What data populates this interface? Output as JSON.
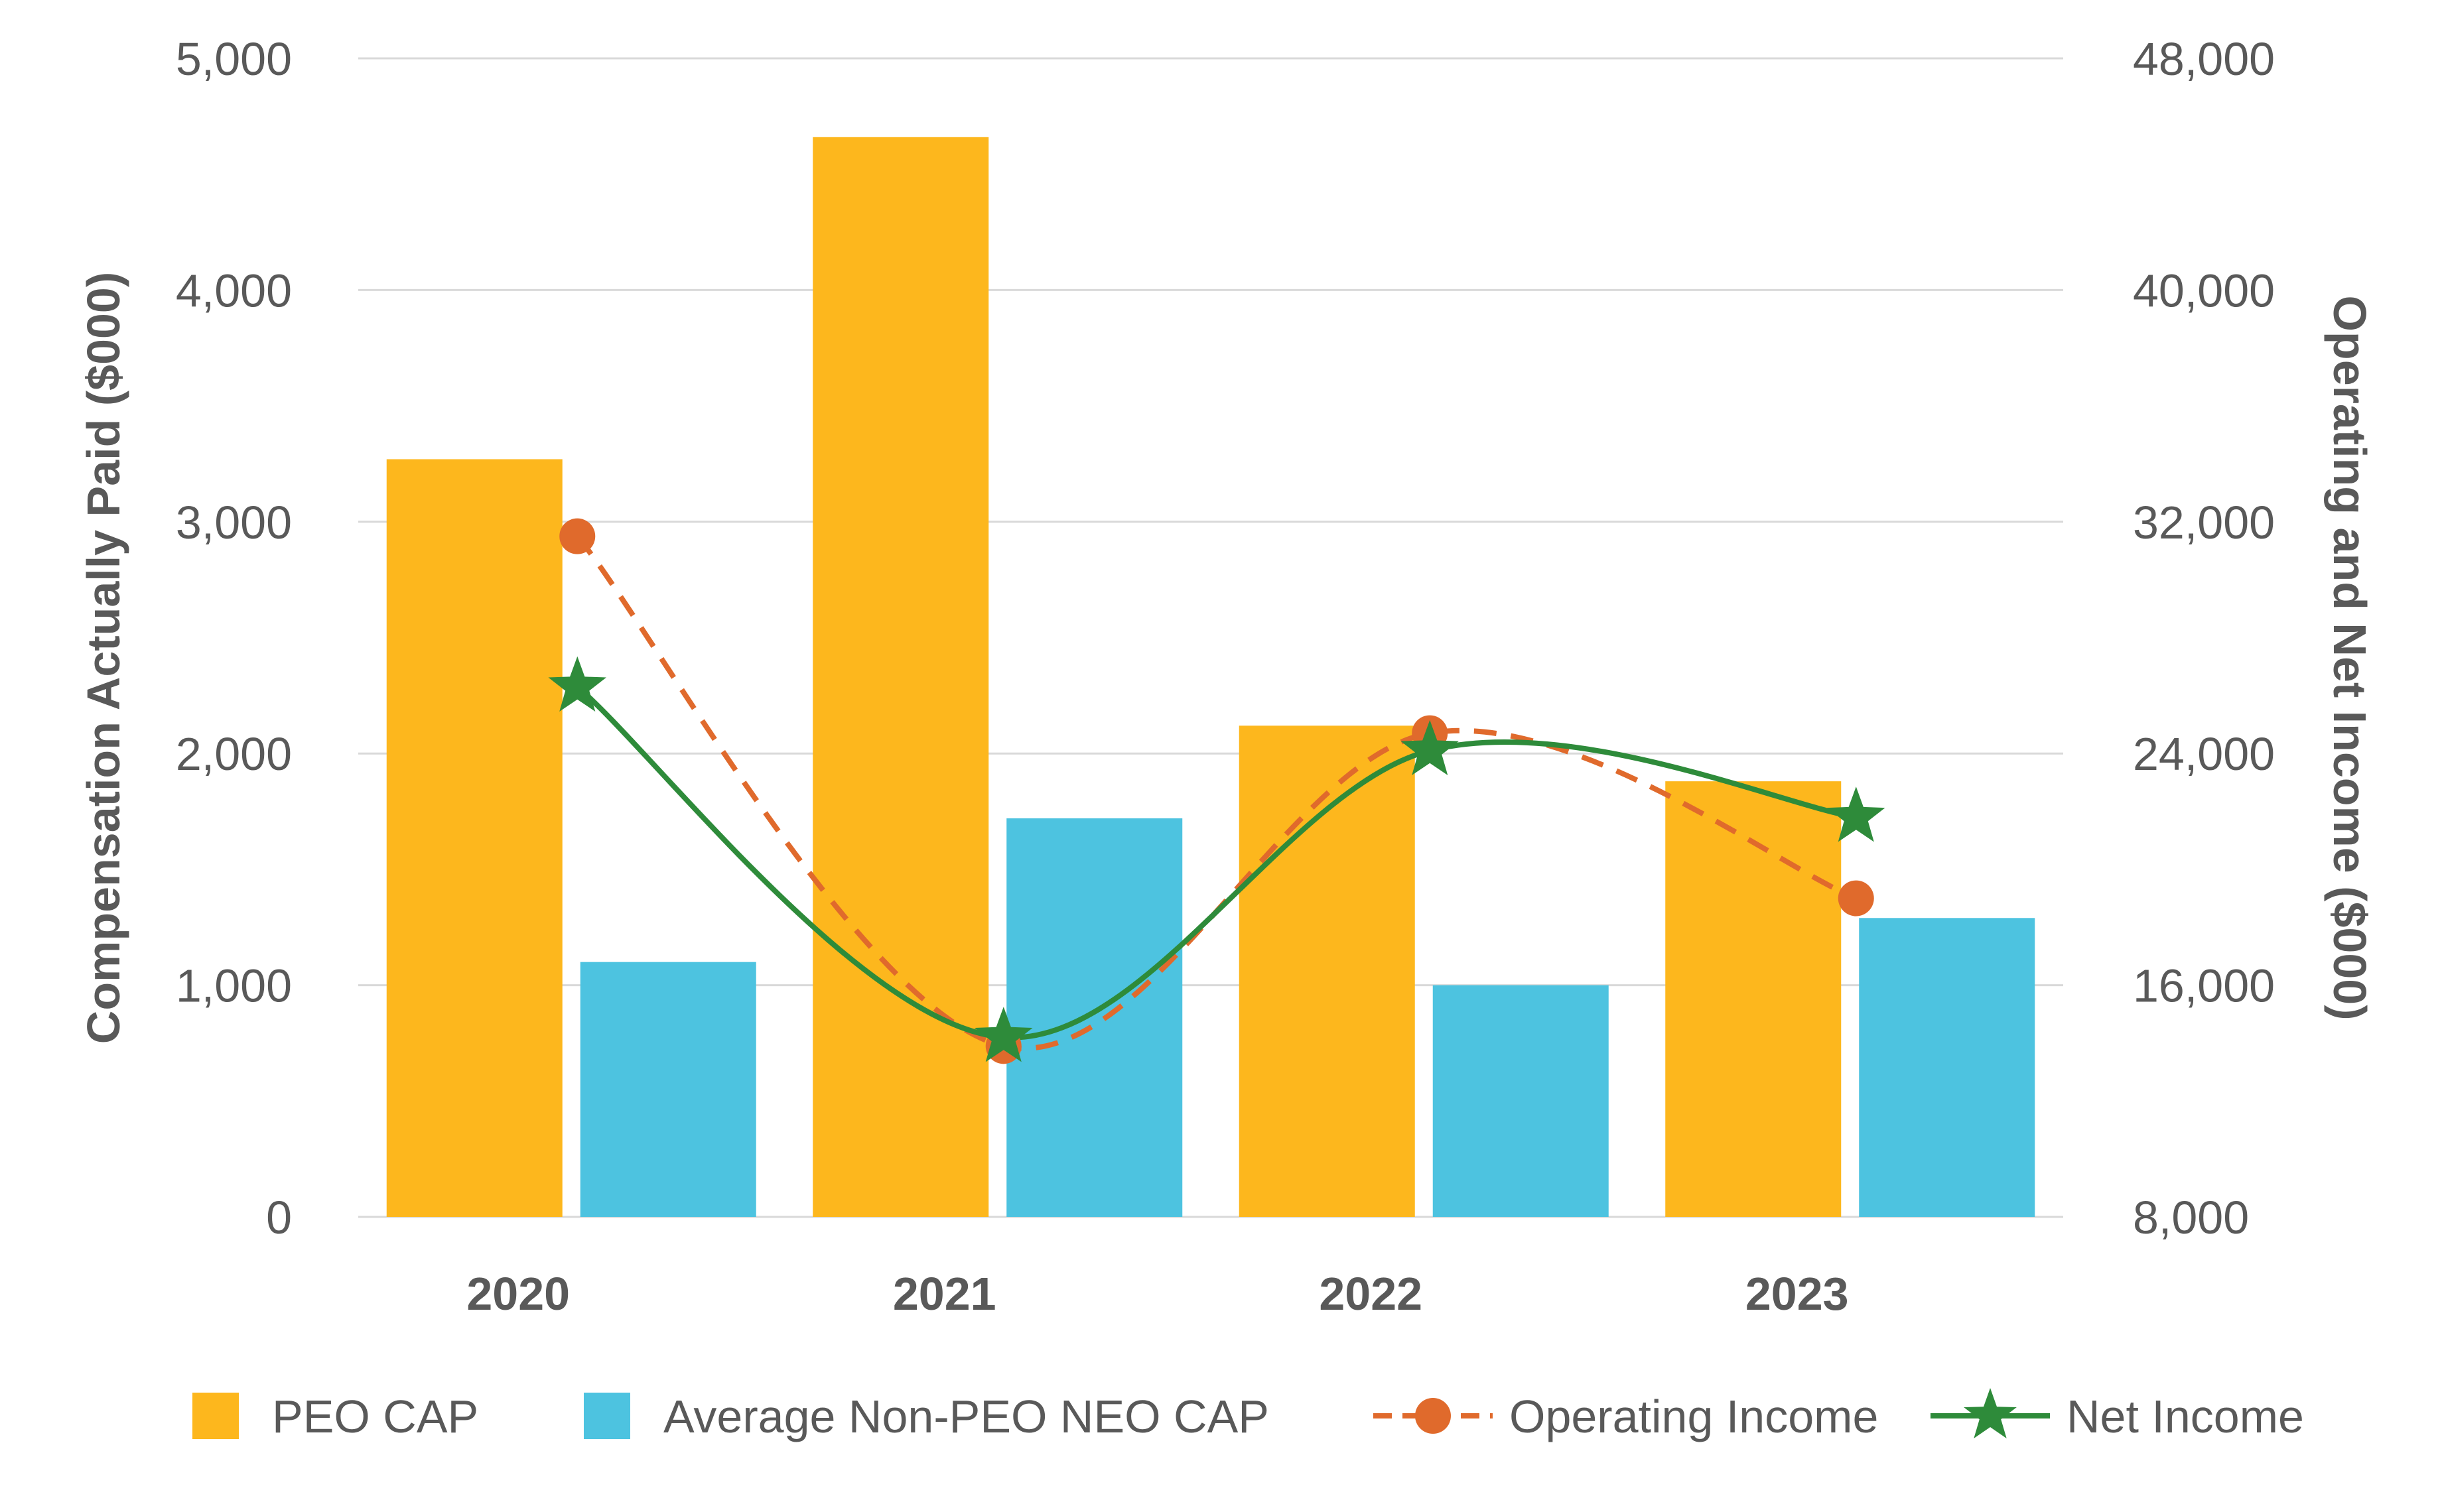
{
  "chart_data": {
    "type": "bar",
    "categories": [
      "2020",
      "2021",
      "2022",
      "2023"
    ],
    "series": [
      {
        "name": "PEO CAP",
        "kind": "bar",
        "axis": "left",
        "color": "#FDB71D",
        "values": [
          3270,
          4660,
          2120,
          1880
        ]
      },
      {
        "name": "Average Non-PEO NEO CAP",
        "kind": "bar",
        "axis": "left",
        "color": "#4DC3E0",
        "values": [
          1100,
          1720,
          1000,
          1290
        ]
      },
      {
        "name": "Operating Income",
        "kind": "line",
        "axis": "right",
        "style": "dashed",
        "marker": "circle",
        "color": "#E06A2C",
        "values": [
          31500,
          13900,
          24700,
          19000
        ]
      },
      {
        "name": "Net Income",
        "kind": "line",
        "axis": "right",
        "style": "solid",
        "marker": "star",
        "color": "#2E8B3A",
        "values": [
          26300,
          14200,
          24100,
          21800
        ]
      }
    ],
    "ylabel": "Compensation Actually Paid ($000)",
    "y2label": "Operating and Net Income ($000)",
    "ylim": [
      0,
      5000
    ],
    "y2lim": [
      8000,
      48000
    ],
    "yticks": [
      "0",
      "1,000",
      "2,000",
      "3,000",
      "4,000",
      "5,000"
    ],
    "y2ticks": [
      "8,000",
      "16,000",
      "24,000",
      "32,000",
      "40,000",
      "48,000"
    ],
    "grid": true,
    "legend": "bottom",
    "gridColor": "#D9D9D9",
    "textColor": "#595959"
  }
}
